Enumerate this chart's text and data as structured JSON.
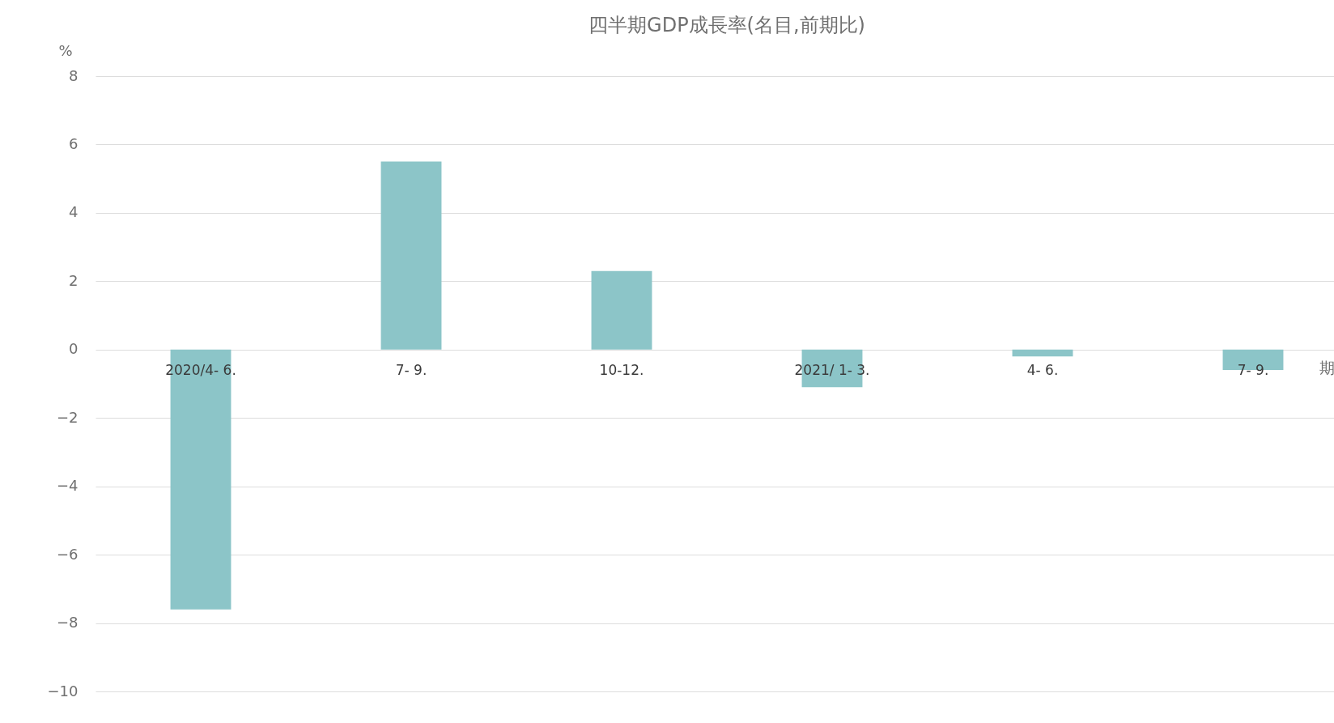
{
  "chart_data": {
    "type": "bar",
    "title": "四半期GDP成長率(名目,前期比)",
    "xlabel": "期",
    "ylabel": "%",
    "categories": [
      "2020/4- 6.",
      "7- 9.",
      "10-12.",
      "2021/ 1- 3.",
      "4- 6.",
      "7- 9."
    ],
    "values": [
      -7.6,
      5.5,
      2.3,
      -1.1,
      -0.2,
      -0.6
    ],
    "color": "#8cc5c8",
    "ylim": [
      -10,
      8
    ],
    "yticks": [
      -10,
      -8,
      -6,
      -4,
      -2,
      0,
      2,
      4,
      6,
      8
    ],
    "grid": "y"
  }
}
